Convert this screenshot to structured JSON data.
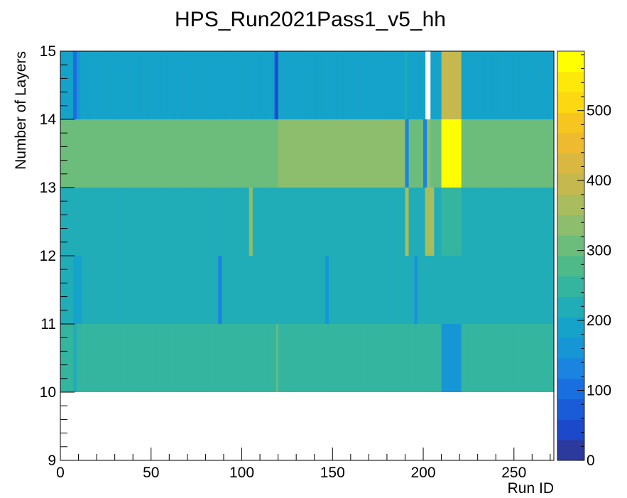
{
  "chart_data": {
    "type": "heatmap",
    "title": "HPS_Run2021Pass1_v5_hh",
    "xlabel": "Run ID",
    "ylabel": "Number of Layers",
    "xlim": [
      0,
      272
    ],
    "ylim": [
      9,
      15
    ],
    "x_ticks": [
      "0",
      "50",
      "100",
      "150",
      "200",
      "250"
    ],
    "y_ticks": [
      "9",
      "10",
      "11",
      "12",
      "13",
      "14",
      "15"
    ],
    "colorbar": {
      "range": [
        0,
        585
      ],
      "ticks": [
        "0",
        "100",
        "200",
        "300",
        "400",
        "500"
      ],
      "palette": [
        "#2c3a9e",
        "#1b49c9",
        "#1a5bd8",
        "#1a6fe0",
        "#1a84e0",
        "#1796d6",
        "#15a3ca",
        "#20adb8",
        "#34b5a0",
        "#4eba8a",
        "#6cbd7c",
        "#8cbe6e",
        "#a9bd5e",
        "#c4b84e",
        "#d9b740",
        "#edba30",
        "#f7c520",
        "#fbd812",
        "#fde80a",
        "#ffff00"
      ],
      "grid": false
    },
    "rows": [
      {
        "layers": 14,
        "base": 178,
        "segments": [
          [
            7,
            9,
            95
          ],
          [
            9,
            11,
            160
          ],
          [
            118,
            120,
            70
          ],
          [
            119,
            120,
            40
          ],
          [
            190,
            191,
            210
          ],
          [
            201,
            204,
            null
          ],
          [
            210,
            221,
            390
          ]
        ]
      },
      {
        "layers": 13,
        "base": 310,
        "segments": [
          [
            120,
            190,
            345
          ],
          [
            190,
            192,
            130
          ],
          [
            200,
            202,
            130
          ],
          [
            202,
            204,
            330
          ],
          [
            210,
            221,
            585
          ],
          [
            221,
            226,
            320
          ]
        ]
      },
      {
        "layers": 12,
        "base": 225,
        "segments": [
          [
            7,
            12,
            215
          ],
          [
            104,
            106,
            350
          ],
          [
            190,
            192,
            360
          ],
          [
            201,
            206,
            380
          ],
          [
            210,
            221,
            240
          ]
        ]
      },
      {
        "layers": 11,
        "base": 205,
        "segments": [
          [
            7,
            12,
            190
          ],
          [
            87,
            89,
            140
          ],
          [
            146,
            148,
            150
          ],
          [
            195,
            197,
            170
          ]
        ]
      },
      {
        "layers": 10,
        "base": 235,
        "segments": [
          [
            7,
            9,
            215
          ],
          [
            119,
            120,
            310
          ],
          [
            210,
            221,
            175
          ]
        ]
      }
    ]
  }
}
